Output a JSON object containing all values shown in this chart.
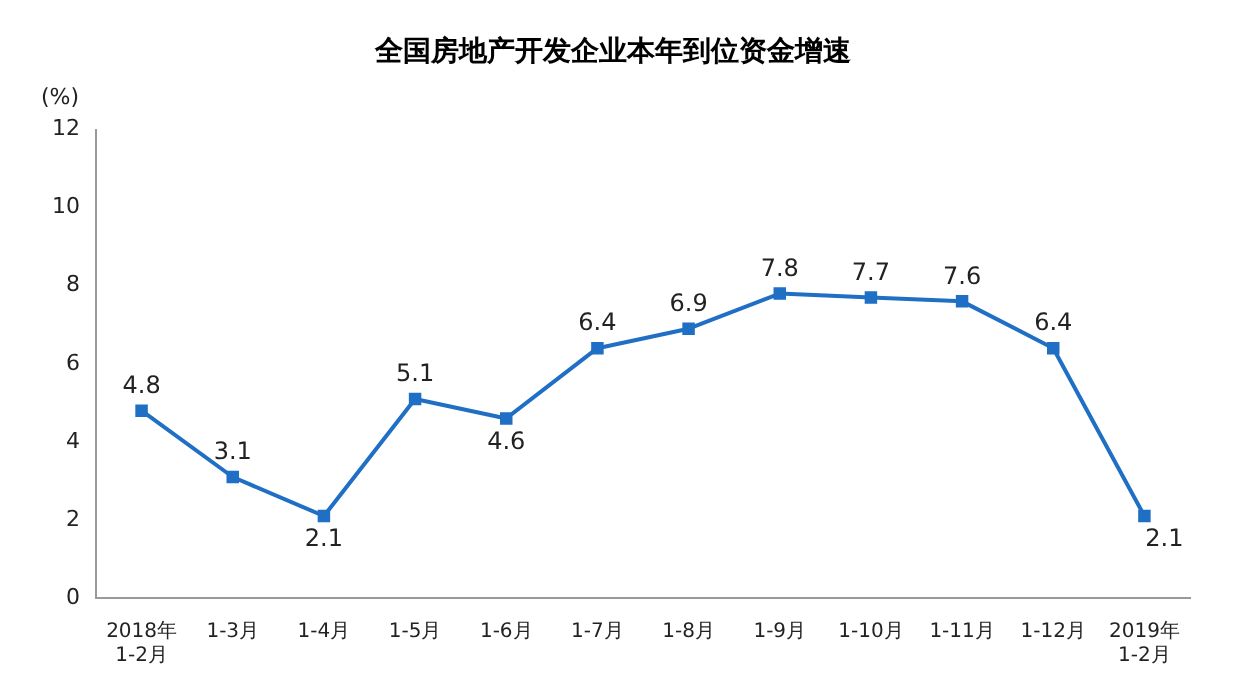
{
  "chart_data": {
    "type": "line",
    "title": "全国房地产开发企业本年到位资金增速",
    "ylabel": "(%)",
    "categories": [
      "2018年\n1-2月",
      "1-3月",
      "1-4月",
      "1-5月",
      "1-6月",
      "1-7月",
      "1-8月",
      "1-9月",
      "1-10月",
      "1-11月",
      "1-12月",
      "2019年\n1-2月"
    ],
    "series": [
      {
        "color": "#1f6fc5",
        "values": [
          4.8,
          3.1,
          2.1,
          5.1,
          4.6,
          6.4,
          6.9,
          7.8,
          7.7,
          7.6,
          6.4,
          2.1
        ]
      }
    ],
    "ylim": [
      0,
      12
    ],
    "yticks": [
      0,
      2,
      4,
      6,
      8,
      10,
      12
    ],
    "grid": false,
    "legend": false,
    "marker": "square",
    "line_style": "solid",
    "data_labels": true
  }
}
